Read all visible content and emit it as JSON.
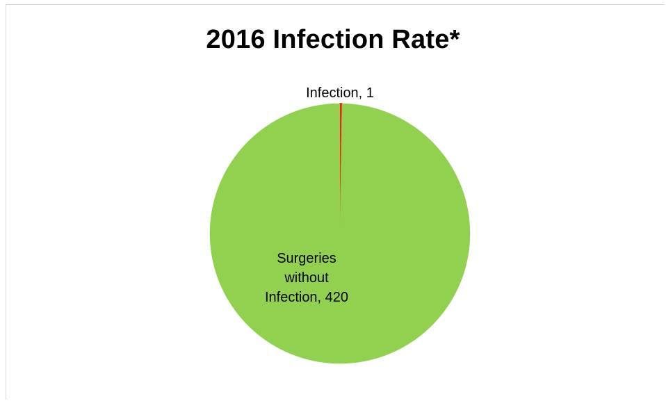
{
  "chart_data": {
    "type": "pie",
    "title": "2016 Infection Rate*",
    "slices": [
      {
        "label": "Infection",
        "value": 1,
        "color": "#ff0000",
        "data_label": "Infection, 1"
      },
      {
        "label": "Surgeries without Infection",
        "value": 420,
        "color": "#92d050",
        "data_label_lines": [
          "Surgeries",
          "without",
          "Infection, 420"
        ]
      }
    ],
    "legend": "none"
  }
}
